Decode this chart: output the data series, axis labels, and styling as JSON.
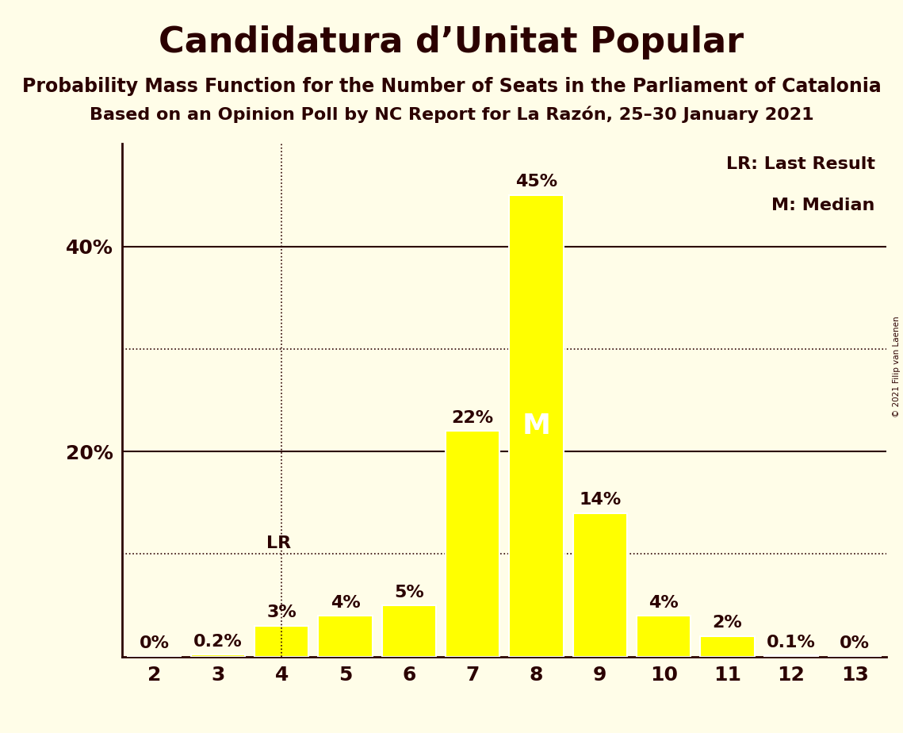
{
  "title": "Candidatura d’Unitat Popular",
  "subtitle1": "Probability Mass Function for the Number of Seats in the Parliament of Catalonia",
  "subtitle2": "Based on an Opinion Poll by NC Report for La Razón, 25–30 January 2021",
  "copyright": "© 2021 Filip van Laenen",
  "seats": [
    2,
    3,
    4,
    5,
    6,
    7,
    8,
    9,
    10,
    11,
    12,
    13
  ],
  "values": [
    0.0,
    0.2,
    3.0,
    4.0,
    5.0,
    22.0,
    45.0,
    14.0,
    4.0,
    2.0,
    0.1,
    0.0
  ],
  "bar_color": "#FFFF00",
  "bar_edgecolor": "#FFFFFF",
  "background_color": "#FFFDE8",
  "text_color": "#2B0000",
  "ylim": [
    0,
    50
  ],
  "solid_yticks": [
    20,
    40
  ],
  "dotted_yticks": [
    10,
    30
  ],
  "lr_seat": 4,
  "median_seat": 8,
  "legend_lr": "LR: Last Result",
  "legend_m": "M: Median",
  "bar_labels": [
    "0%",
    "0.2%",
    "3%",
    "4%",
    "5%",
    "22%",
    "45%",
    "14%",
    "4%",
    "2%",
    "0.1%",
    "0%"
  ],
  "title_fontsize": 32,
  "subtitle_fontsize": 17,
  "label_fontsize": 16,
  "axis_fontsize": 18,
  "legend_fontsize": 16
}
